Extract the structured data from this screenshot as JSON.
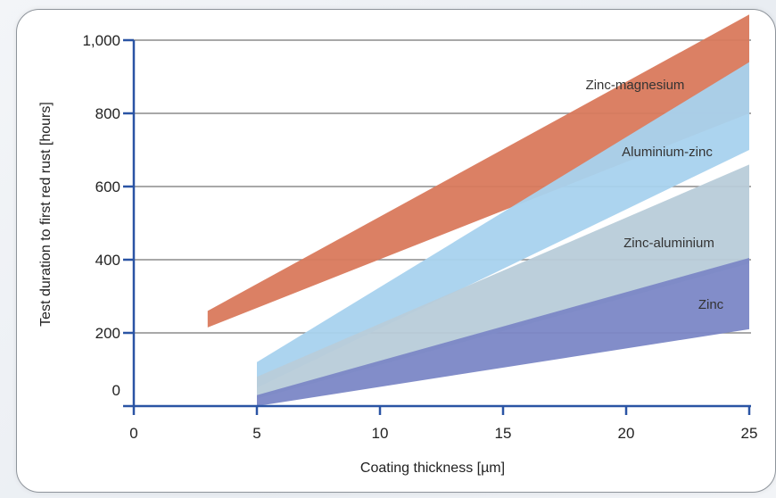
{
  "chart_data": {
    "type": "area",
    "xlabel": "Coating thickness [µm]",
    "ylabel": "Test duration to first red rust [hours]",
    "xlim": [
      0,
      25
    ],
    "ylim": [
      0,
      1000
    ],
    "x_ticks": [
      "0",
      "5",
      "10",
      "15",
      "20",
      "25"
    ],
    "y_ticks": [
      "0",
      "200",
      "400",
      "600",
      "800",
      "1,000"
    ],
    "grid": "horizontal",
    "series": [
      {
        "name": "Zinc",
        "color": "#7b87c6",
        "x": [
          5,
          25
        ],
        "lower": [
          0,
          210
        ],
        "upper": [
          30,
          405
        ]
      },
      {
        "name": "Zinc-aluminium",
        "color": "#b8ccd9",
        "x": [
          5,
          25
        ],
        "lower": [
          20,
          390
        ],
        "upper": [
          80,
          660
        ]
      },
      {
        "name": "Aluminium-zinc",
        "color": "#a8d2ee",
        "x": [
          5,
          25
        ],
        "lower": [
          50,
          700
        ],
        "upper": [
          120,
          940
        ]
      },
      {
        "name": "Zinc-magnesium",
        "color": "#d9795c",
        "x": [
          3,
          25
        ],
        "lower": [
          215,
          800
        ],
        "upper": [
          260,
          1070
        ]
      }
    ]
  }
}
